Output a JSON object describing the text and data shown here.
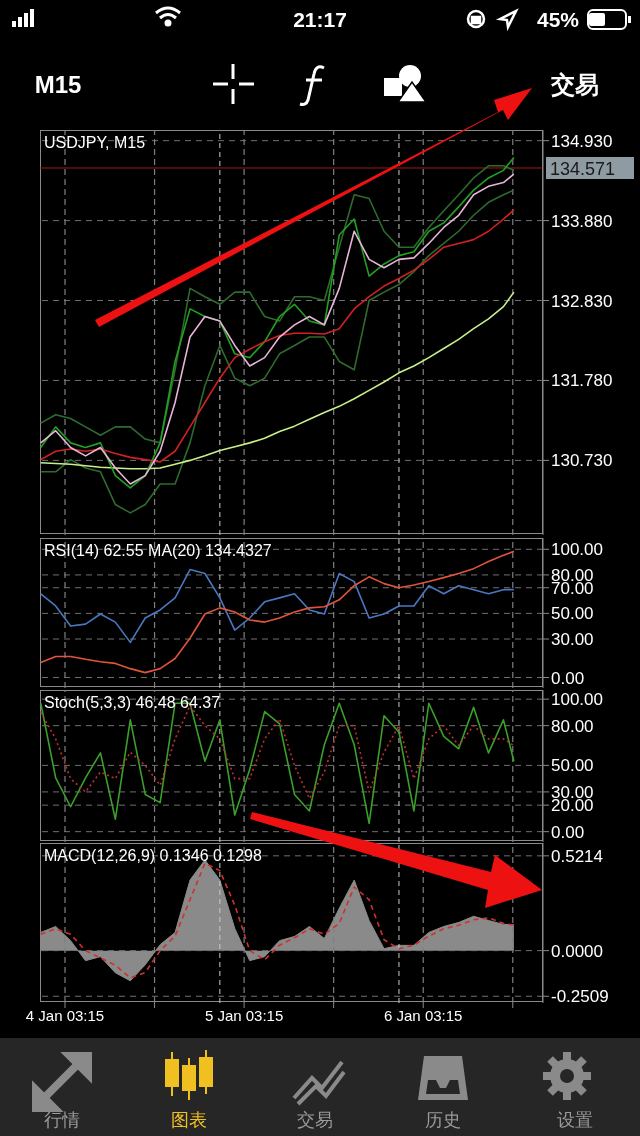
{
  "chart_data": [
    {
      "type": "line",
      "title": "USDJPY, M15",
      "x": [
        "--01-04T00:00",
        "--01-04T02:00",
        "--01-04T04:00",
        "--01-04T06:00",
        "--01-04T08:00",
        "--01-04T10:00",
        "--01-04T12:00",
        "--01-04T14:00",
        "--01-04T16:00",
        "--01-04T18:00",
        "--01-04T20:00",
        "--01-04T22:00",
        "--01-05T00:00",
        "--01-05T02:00",
        "--01-05T04:00",
        "--01-05T06:00",
        "--01-05T08:00",
        "--01-05T10:00",
        "--01-05T12:00",
        "--01-05T14:00",
        "--01-05T16:00",
        "--01-05T18:00",
        "--01-05T20:00",
        "--01-05T22:00",
        "--01-06T00:00",
        "--01-06T02:00",
        "--01-06T04:00",
        "--01-06T06:00",
        "--01-06T08:00",
        "--01-06T10:00",
        "--01-06T12:00",
        "--01-06T14:00",
        "--01-06T15:24"
      ],
      "xlim": [
        "--01-03T23:54",
        "--01-06T19:18"
      ],
      "xticks": [
        {
          "value": "--01-04T03:15",
          "label": null
        },
        {
          "value": "--01-04T15:15",
          "label": null
        },
        {
          "value": "--01-05T03:15",
          "label": null
        },
        {
          "value": "--01-05T15:15",
          "label": null
        },
        {
          "value": "--01-06T03:15",
          "label": null
        },
        {
          "value": "--01-06T15:15",
          "label": null
        }
      ],
      "ylim": [
        129.75,
        135.07
      ],
      "yticks": [
        {
          "value": 130.73,
          "label": "130.730"
        },
        {
          "value": 131.78,
          "label": "131.780"
        },
        {
          "value": 132.83,
          "label": "132.830"
        },
        {
          "value": 133.88,
          "label": "133.880"
        },
        {
          "value": 134.93,
          "label": "134.930"
        }
      ],
      "tick_labels": "y",
      "grid": true,
      "line_style": "solid",
      "series": [
        {
          "color": "#2e6b2e",
          "values": [
            131.22,
            131.33,
            131.28,
            131.17,
            131.06,
            131.17,
            131.17,
            131.01,
            130.96,
            131.92,
            132.99,
            132.88,
            132.78,
            132.94,
            132.94,
            132.62,
            132.56,
            132.88,
            132.88,
            132.83,
            133.53,
            134.22,
            134.17,
            133.74,
            133.53,
            133.53,
            133.79,
            134.01,
            134.22,
            134.44,
            134.6,
            134.6,
            134.54
          ]
        },
        {
          "color": "#2e6b2e",
          "values": [
            130.58,
            130.58,
            130.74,
            130.63,
            130.58,
            130.15,
            130.04,
            130.15,
            130.42,
            130.42,
            130.96,
            131.71,
            132.24,
            131.81,
            131.71,
            131.81,
            132.13,
            132.24,
            132.35,
            132.35,
            132.03,
            131.92,
            132.83,
            132.94,
            133.04,
            133.21,
            133.42,
            133.58,
            133.74,
            133.95,
            134.12,
            134.22,
            134.28
          ]
        },
        {
          "color": "#c8f08c",
          "values": [
            130.7,
            130.69,
            130.68,
            130.66,
            130.64,
            130.63,
            130.62,
            130.62,
            130.63,
            130.68,
            130.73,
            130.79,
            130.86,
            130.91,
            130.96,
            131.02,
            131.11,
            131.18,
            131.27,
            131.36,
            131.44,
            131.54,
            131.65,
            131.76,
            131.88,
            131.97,
            132.08,
            132.2,
            132.32,
            132.46,
            132.59,
            132.75,
            132.94
          ]
        },
        {
          "color": "#22a022",
          "values": [
            130.9,
            131.17,
            130.96,
            130.9,
            130.96,
            130.53,
            130.37,
            130.53,
            130.96,
            132.03,
            132.72,
            132.62,
            132.56,
            132.13,
            132.08,
            132.29,
            132.62,
            132.78,
            132.56,
            132.51,
            133.69,
            133.9,
            133.15,
            133.31,
            133.42,
            133.47,
            133.74,
            133.85,
            134.06,
            134.28,
            134.44,
            134.54,
            134.71
          ]
        },
        {
          "color": "#d42020",
          "values": [
            130.74,
            130.85,
            130.88,
            130.85,
            130.88,
            130.82,
            130.77,
            130.74,
            130.71,
            130.85,
            131.17,
            131.49,
            131.81,
            132.08,
            132.19,
            132.29,
            132.37,
            132.4,
            132.4,
            132.39,
            132.46,
            132.72,
            132.88,
            133.02,
            133.12,
            133.23,
            133.37,
            133.53,
            133.58,
            133.63,
            133.74,
            133.9,
            134.02
          ]
        },
        {
          "color": "#e8b4d8",
          "values": [
            130.96,
            131.12,
            130.9,
            130.79,
            130.9,
            130.63,
            130.42,
            130.53,
            130.85,
            131.49,
            132.35,
            132.62,
            132.56,
            132.24,
            131.97,
            132.08,
            132.35,
            132.51,
            132.62,
            132.51,
            132.99,
            133.74,
            133.37,
            133.26,
            133.37,
            133.39,
            133.58,
            133.79,
            133.95,
            134.22,
            134.33,
            134.38,
            134.49
          ]
        }
      ],
      "ref_lines": [
        {
          "axis": "y",
          "value": 134.571,
          "label": "134.571",
          "color": "#a01818",
          "line_style": "solid"
        },
        {
          "axis": "x",
          "value": "--01-05T00:00",
          "color": "#cccccc",
          "line_style": "dashed"
        },
        {
          "axis": "x",
          "value": "--01-06T00:00",
          "color": "#cccccc",
          "line_style": "dashed"
        }
      ],
      "annotations": [
        "21:17",
        "45%",
        "M15",
        "交易",
        "行情",
        "图表",
        "交易",
        "历史",
        "设置"
      ]
    },
    {
      "type": "line",
      "title": "RSI(14) 62.55 MA(20) 134.4327",
      "x": [
        "--01-04T00:00",
        "--01-04T02:00",
        "--01-04T04:00",
        "--01-04T06:00",
        "--01-04T08:00",
        "--01-04T10:00",
        "--01-04T12:00",
        "--01-04T14:00",
        "--01-04T16:00",
        "--01-04T18:00",
        "--01-04T20:00",
        "--01-04T22:00",
        "--01-05T00:00",
        "--01-05T02:00",
        "--01-05T04:00",
        "--01-05T06:00",
        "--01-05T08:00",
        "--01-05T10:00",
        "--01-05T12:00",
        "--01-05T14:00",
        "--01-05T16:00",
        "--01-05T18:00",
        "--01-05T20:00",
        "--01-05T22:00",
        "--01-06T00:00",
        "--01-06T02:00",
        "--01-06T04:00",
        "--01-06T06:00",
        "--01-06T08:00",
        "--01-06T10:00",
        "--01-06T12:00",
        "--01-06T14:00",
        "--01-06T15:24"
      ],
      "xlim": [
        "--01-03T23:54",
        "--01-06T19:18"
      ],
      "xticks": [
        {
          "value": "--01-04T03:15",
          "label": null
        },
        {
          "value": "--01-04T15:15",
          "label": null
        },
        {
          "value": "--01-05T03:15",
          "label": null
        },
        {
          "value": "--01-05T15:15",
          "label": null
        },
        {
          "value": "--01-06T03:15",
          "label": null
        },
        {
          "value": "--01-06T15:15",
          "label": null
        }
      ],
      "ylim": [
        -8.2,
        108.8
      ],
      "yticks": [
        {
          "value": 0,
          "label": "0.00"
        },
        {
          "value": 30,
          "label": "30.00"
        },
        {
          "value": 50,
          "label": "50.00"
        },
        {
          "value": 70,
          "label": "70.00"
        },
        {
          "value": 80,
          "label": "80.00"
        },
        {
          "value": 100,
          "label": "100.00"
        }
      ],
      "tick_labels": "y",
      "grid": true,
      "line_style": "solid",
      "series": [
        {
          "color": "#4a78c0",
          "values": [
            65.3,
            55.8,
            40.1,
            41.6,
            49.5,
            43.2,
            27.4,
            46.4,
            52.7,
            62.1,
            84.2,
            81.1,
            62.1,
            36.9,
            46.4,
            59.0,
            62.1,
            65.3,
            52.7,
            49.5,
            81.1,
            74.8,
            46.4,
            49.5,
            55.8,
            55.8,
            71.6,
            65.3,
            71.6,
            68.5,
            65.3,
            68.5,
            68.5
          ]
        },
        {
          "color": "#e0553a",
          "values": [
            11.7,
            16.4,
            16.4,
            14.2,
            12.3,
            11.0,
            6.9,
            3.8,
            6.9,
            14.8,
            30.6,
            49.5,
            54.3,
            51.1,
            44.8,
            43.2,
            46.4,
            51.1,
            54.3,
            55.2,
            60.6,
            71.6,
            78.5,
            73.2,
            70.0,
            72.2,
            74.8,
            77.9,
            81.1,
            84.9,
            90.5,
            95.3,
            98.4
          ]
        }
      ],
      "ref_lines": [
        {
          "axis": "x",
          "value": "--01-05T00:00",
          "color": "#cccccc",
          "line_style": "dashed"
        },
        {
          "axis": "x",
          "value": "--01-06T00:00",
          "color": "#cccccc",
          "line_style": "dashed"
        }
      ]
    },
    {
      "type": "line",
      "title": "Stoch(5,3,3) 46.48 64.37",
      "x": [
        "--01-04T00:00",
        "--01-04T02:00",
        "--01-04T04:00",
        "--01-04T06:00",
        "--01-04T08:00",
        "--01-04T10:00",
        "--01-04T12:00",
        "--01-04T14:00",
        "--01-04T16:00",
        "--01-04T18:00",
        "--01-04T20:00",
        "--01-04T22:00",
        "--01-05T00:00",
        "--01-05T02:00",
        "--01-05T04:00",
        "--01-05T06:00",
        "--01-05T08:00",
        "--01-05T10:00",
        "--01-05T12:00",
        "--01-05T14:00",
        "--01-05T16:00",
        "--01-05T18:00",
        "--01-05T20:00",
        "--01-05T22:00",
        "--01-06T00:00",
        "--01-06T02:00",
        "--01-06T04:00",
        "--01-06T06:00",
        "--01-06T08:00",
        "--01-06T10:00",
        "--01-06T12:00",
        "--01-06T14:00",
        "--01-06T15:24"
      ],
      "xlim": [
        "--01-03T23:54",
        "--01-06T19:18"
      ],
      "xticks": [
        {
          "value": "--01-04T03:15",
          "label": null
        },
        {
          "value": "--01-04T15:15",
          "label": null
        },
        {
          "value": "--01-05T03:15",
          "label": null
        },
        {
          "value": "--01-05T15:15",
          "label": null
        },
        {
          "value": "--01-06T03:15",
          "label": null
        },
        {
          "value": "--01-06T15:15",
          "label": null
        }
      ],
      "ylim": [
        -7.8,
        106.9
      ],
      "yticks": [
        {
          "value": 0,
          "label": "0.00"
        },
        {
          "value": 20,
          "label": "20.00"
        },
        {
          "value": 30,
          "label": "30.00"
        },
        {
          "value": 50,
          "label": "50.00"
        },
        {
          "value": 80,
          "label": "80.00"
        },
        {
          "value": 100,
          "label": "100.00"
        }
      ],
      "tick_labels": "y",
      "grid": true,
      "line_style": "solid",
      "series": [
        {
          "color": "#3aa02a",
          "values": [
            96.9,
            40.6,
            18.8,
            40.6,
            59.4,
            9.4,
            84.4,
            28.1,
            21.9,
            96.9,
            96.9,
            53.1,
            84.4,
            12.5,
            46.9,
            90.6,
            81.3,
            28.1,
            15.6,
            65.6,
            96.9,
            65.6,
            6.3,
            87.5,
            75.0,
            15.6,
            96.9,
            71.9,
            62.5,
            93.8,
            59.4,
            84.4,
            53.1
          ]
        },
        {
          "color": "#c03030",
          "line_style": "dotted",
          "values": [
            90,
            70,
            40,
            30,
            45,
            40,
            60,
            50,
            35,
            70,
            95,
            80,
            70,
            40,
            40,
            70,
            85,
            50,
            25,
            45,
            80,
            80,
            30,
            60,
            80,
            40,
            70,
            80,
            65,
            80,
            70,
            70,
            65
          ]
        }
      ],
      "ref_lines": [
        {
          "axis": "x",
          "value": "--01-05T00:00",
          "color": "#cccccc",
          "line_style": "dashed"
        },
        {
          "axis": "x",
          "value": "--01-06T00:00",
          "color": "#cccccc",
          "line_style": "dashed"
        }
      ]
    },
    {
      "type": "area",
      "title": "MACD(12,26,9) 0.1346 0.1298",
      "x": [
        "--01-04T00:00",
        "--01-04T02:00",
        "--01-04T04:00",
        "--01-04T06:00",
        "--01-04T08:00",
        "--01-04T10:00",
        "--01-04T12:00",
        "--01-04T14:00",
        "--01-04T16:00",
        "--01-04T18:00",
        "--01-04T20:00",
        "--01-04T22:00",
        "--01-05T00:00",
        "--01-05T02:00",
        "--01-05T04:00",
        "--01-05T06:00",
        "--01-05T08:00",
        "--01-05T10:00",
        "--01-05T12:00",
        "--01-05T14:00",
        "--01-05T16:00",
        "--01-05T18:00",
        "--01-05T20:00",
        "--01-05T22:00",
        "--01-06T00:00",
        "--01-06T02:00",
        "--01-06T04:00",
        "--01-06T06:00",
        "--01-06T08:00",
        "--01-06T10:00",
        "--01-06T12:00",
        "--01-06T14:00",
        "--01-06T15:24"
      ],
      "xlim": [
        "--01-03T23:54",
        "--01-06T19:18"
      ],
      "xticks": [
        {
          "value": "--01-04T03:15",
          "label": "4 Jan 03:15"
        },
        {
          "value": "--01-04T15:15",
          "label": null
        },
        {
          "value": "--01-05T03:15",
          "label": "5 Jan 03:15"
        },
        {
          "value": "--01-05T15:15",
          "label": null
        },
        {
          "value": "--01-06T03:15",
          "label": "6 Jan 03:15"
        },
        {
          "value": "--01-06T15:15",
          "label": null
        }
      ],
      "ylim": [
        -0.288,
        0.592
      ],
      "yticks": [
        {
          "value": -0.2509,
          "label": "-0.2509"
        },
        {
          "value": 0,
          "label": "0.0000"
        },
        {
          "value": 0.5214,
          "label": "0.5214"
        }
      ],
      "grid": true,
      "line_style": "solid",
      "series": [
        {
          "color": "#8a8a8a",
          "values": [
            0.1,
            0.133,
            0.055,
            -0.055,
            -0.033,
            -0.122,
            -0.166,
            -0.078,
            0.033,
            0.1,
            0.388,
            0.499,
            0.388,
            0.122,
            -0.055,
            -0.033,
            0.055,
            0.078,
            0.133,
            0.067,
            0.233,
            0.388,
            0.166,
            0.011,
            0.029,
            0.029,
            0.1,
            0.133,
            0.155,
            0.189,
            0.166,
            0.144,
            0.144
          ]
        },
        {
          "type": "line",
          "color": "#d03030",
          "line_style": "dashed",
          "values": [
            0.09,
            0.12,
            0.09,
            0.0,
            -0.04,
            -0.08,
            -0.15,
            -0.12,
            0.0,
            0.08,
            0.28,
            0.48,
            0.44,
            0.25,
            0.0,
            -0.05,
            0.03,
            0.07,
            0.12,
            0.09,
            0.15,
            0.35,
            0.28,
            0.06,
            0.01,
            0.03,
            0.08,
            0.12,
            0.14,
            0.17,
            0.18,
            0.15,
            0.14
          ]
        }
      ],
      "ref_lines": [
        {
          "axis": "x",
          "value": "--01-05T00:00",
          "color": "#cccccc",
          "line_style": "dashed"
        },
        {
          "axis": "x",
          "value": "--01-06T00:00",
          "color": "#cccccc",
          "line_style": "dashed"
        }
      ]
    }
  ]
}
